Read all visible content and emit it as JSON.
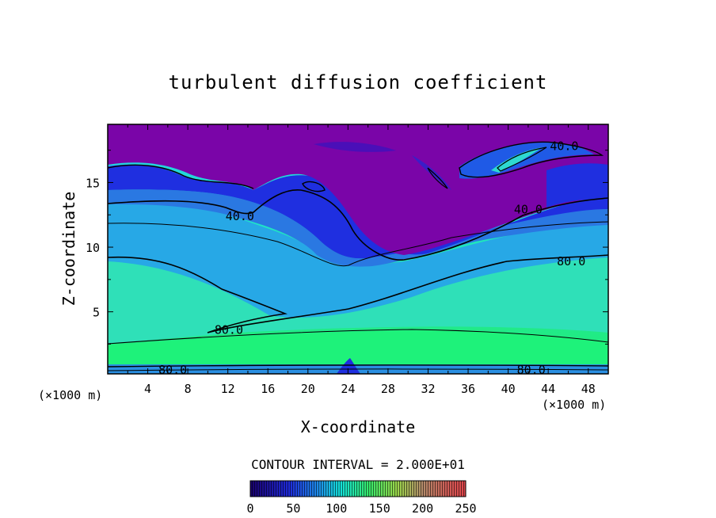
{
  "chart_data": {
    "type": "heatmap",
    "title": "turbulent diffusion coefficient",
    "xlabel": "X-coordinate",
    "ylabel": "Z-coordinate",
    "x_unit_left": "(×1000 m)",
    "x_unit_right": "(×1000 m)",
    "xlim": [
      0,
      50
    ],
    "ylim": [
      0.2,
      19.5
    ],
    "x_ticks": [
      "4",
      "8",
      "12",
      "16",
      "20",
      "24",
      "28",
      "32",
      "36",
      "40",
      "44",
      "48"
    ],
    "y_ticks": [
      "5",
      "10",
      "15"
    ],
    "contour_interval_text": "CONTOUR INTERVAL = 2.000E+01",
    "contour_labels": [
      {
        "text": "40.0",
        "x": 13.2,
        "z": 12.4
      },
      {
        "text": "40.0",
        "x": 42.0,
        "z": 12.9
      },
      {
        "text": "40.0",
        "x": 45.6,
        "z": 17.8
      },
      {
        "text": "80.0",
        "x": 46.3,
        "z": 8.9
      },
      {
        "text": "80.0",
        "x": 12.1,
        "z": 3.6
      },
      {
        "text": "80.0",
        "x": 6.5,
        "z": 0.5
      },
      {
        "text": "80.0",
        "x": 42.3,
        "z": 0.5
      }
    ],
    "colorbar": {
      "ticks": [
        "0",
        "50",
        "100",
        "150",
        "200",
        "250"
      ],
      "range": [
        0,
        250
      ]
    }
  }
}
